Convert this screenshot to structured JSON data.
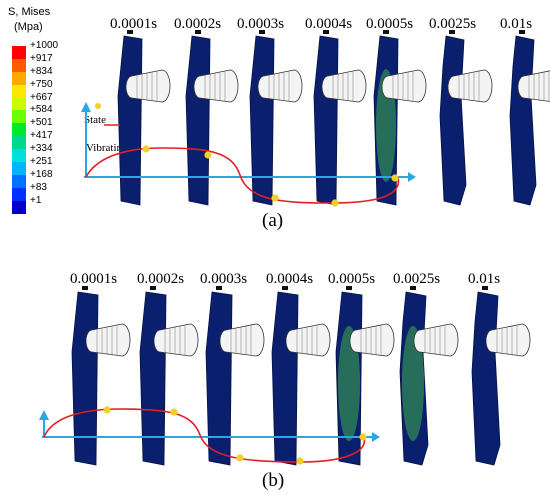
{
  "legend": {
    "title": "S, Mises",
    "unit": "(Mpa)",
    "labels": [
      "+1000",
      "+917",
      "+834",
      "+750",
      "+667",
      "+584",
      "+501",
      "+417",
      "+334",
      "+251",
      "+168",
      "+83",
      "+1"
    ],
    "colors": [
      "#ff0000",
      "#ff5a00",
      "#ffa800",
      "#ffe600",
      "#c8ff00",
      "#6cff00",
      "#00e82a",
      "#00d890",
      "#00e0d8",
      "#00b4ff",
      "#0072ff",
      "#0030ff",
      "#0000c8"
    ]
  },
  "panel_a": {
    "times": [
      "0.0001s",
      "0.0002s",
      "0.0003s",
      "0.0004s",
      "0.0005s",
      "0.0025s",
      "0.01s"
    ],
    "state_label": "State",
    "vibrating_label": "Vibrating",
    "caption": "(a)"
  },
  "panel_b": {
    "times": [
      "0.0001s",
      "0.0002s",
      "0.0003s",
      "0.0004s",
      "0.0005s",
      "0.0025s",
      "0.01s"
    ],
    "caption": "(b)"
  },
  "colors": {
    "plate": "#0a1f6e",
    "plate_edge": "#061245",
    "stress_green": "#3fae4a",
    "axis": "#29a7e1",
    "wave": "#e31e24",
    "marker": "#f2d02b",
    "projectile": "#f4f4f4"
  }
}
